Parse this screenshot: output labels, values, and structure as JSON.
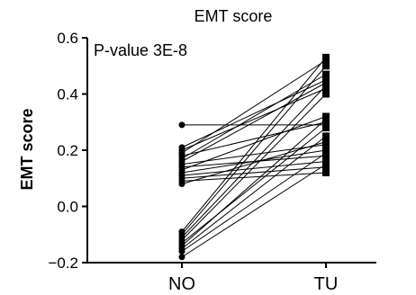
{
  "chart_data": {
    "type": "paired-dot",
    "title": "EMT score",
    "xlabel": "",
    "ylabel": "EMT score",
    "ylim": [
      -0.2,
      0.6
    ],
    "yticks": [
      -0.2,
      0.0,
      0.2,
      0.4,
      0.6
    ],
    "ytick_labels": [
      "−0.2",
      "0.0",
      "0.2",
      "0.4",
      "0.6"
    ],
    "categories": [
      "NO",
      "TU"
    ],
    "annotation": "P-value 3E-8",
    "colors": {
      "line": "#000000",
      "marker": "#000000"
    },
    "markers": {
      "NO": "circle",
      "TU": "square"
    },
    "pairs": [
      {
        "NO": 0.29,
        "TU": 0.29
      },
      {
        "NO": 0.21,
        "TU": 0.45
      },
      {
        "NO": 0.2,
        "TU": 0.42
      },
      {
        "NO": 0.19,
        "TU": 0.52
      },
      {
        "NO": 0.18,
        "TU": 0.3
      },
      {
        "NO": 0.17,
        "TU": 0.47
      },
      {
        "NO": 0.16,
        "TU": 0.44
      },
      {
        "NO": 0.15,
        "TU": 0.22
      },
      {
        "NO": 0.14,
        "TU": 0.18
      },
      {
        "NO": 0.13,
        "TU": 0.32
      },
      {
        "NO": 0.12,
        "TU": 0.2
      },
      {
        "NO": 0.11,
        "TU": 0.16
      },
      {
        "NO": 0.1,
        "TU": 0.14
      },
      {
        "NO": 0.09,
        "TU": 0.12
      },
      {
        "NO": 0.08,
        "TU": 0.23
      },
      {
        "NO": -0.09,
        "TU": 0.53
      },
      {
        "NO": -0.1,
        "TU": 0.5
      },
      {
        "NO": -0.11,
        "TU": 0.43
      },
      {
        "NO": -0.12,
        "TU": 0.4
      },
      {
        "NO": -0.13,
        "TU": 0.28
      },
      {
        "NO": -0.14,
        "TU": 0.31
      },
      {
        "NO": -0.15,
        "TU": 0.25
      },
      {
        "NO": -0.16,
        "TU": 0.19
      },
      {
        "NO": -0.18,
        "TU": 0.15
      }
    ]
  }
}
